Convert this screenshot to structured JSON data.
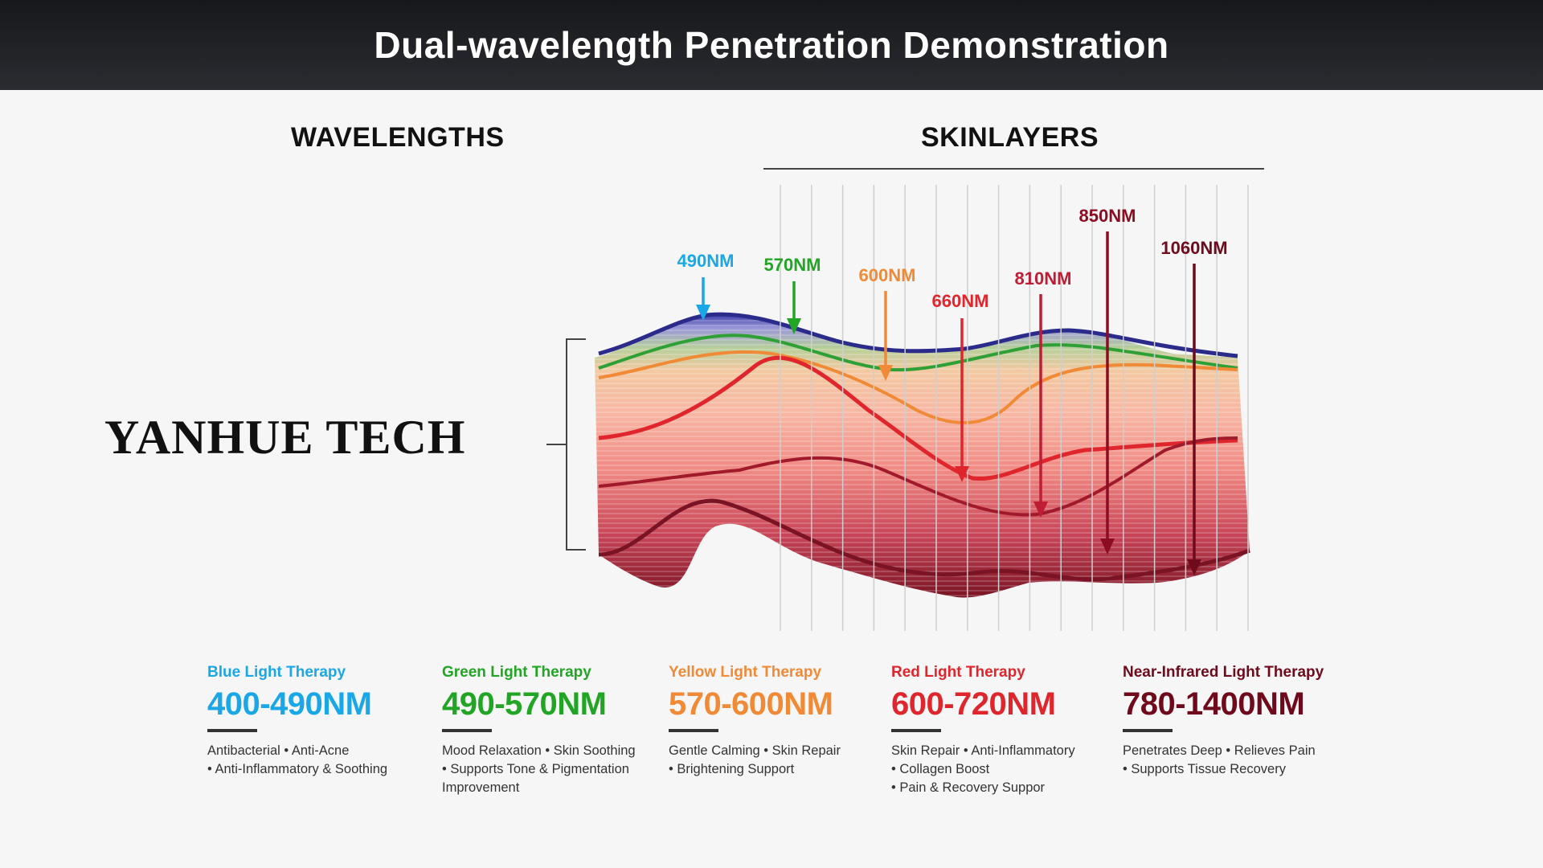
{
  "header": {
    "title": "Dual-wavelength Penetration Demonstration"
  },
  "sections": {
    "wavelengths": "WAVELENGTHS",
    "skinlayers": "SKINLAYERS"
  },
  "brand": {
    "logo": "YANHUE TECH"
  },
  "arrows": [
    {
      "label": "490NM",
      "color": "#1aa7e8"
    },
    {
      "label": "570NM",
      "color": "#22a524"
    },
    {
      "label": "600NM",
      "color": "#f08a36"
    },
    {
      "label": "660NM",
      "color": "#e0262d"
    },
    {
      "label": "810NM",
      "color": "#bf1d35"
    },
    {
      "label": "850NM",
      "color": "#8c0d22"
    },
    {
      "label": "1060NM",
      "color": "#6e0a1c"
    }
  ],
  "colors": {
    "header_bg": "#1c1d21",
    "page_bg": "#f6f6f6",
    "blue": "#1aa7e8",
    "green": "#22a524",
    "yellow": "#f08a36",
    "red": "#e0262d",
    "near_infrared": "#6e0a1c"
  },
  "therapies": [
    {
      "name": "Blue Light Therapy",
      "range": "400-490NM",
      "color": "#1aa7e8",
      "desc": [
        "Antibacterial • Anti-Acne",
        "• Anti-Inflammatory & Soothing"
      ]
    },
    {
      "name": "Green Light Therapy",
      "range": "490-570NM",
      "color": "#22a524",
      "desc": [
        "Mood Relaxation • Skin Soothing",
        "• Supports Tone & Pigmentation",
        "Improvement"
      ]
    },
    {
      "name": "Yellow Light Therapy",
      "range": "570-600NM",
      "color": "#f08a36",
      "desc": [
        "Gentle Calming • Skin Repair",
        "• Brightening Support"
      ]
    },
    {
      "name": "Red Light Therapy",
      "range": "600-720NM",
      "color": "#e0262d",
      "desc": [
        "Skin Repair • Anti-Inflammatory",
        "• Collagen Boost",
        "• Pain & Recovery Suppor"
      ]
    },
    {
      "name": "Near-Infrared Light Therapy",
      "range": "780-1400NM",
      "color": "#6e0a1c",
      "desc": [
        "Penetrates Deep • Relieves Pain",
        "• Supports Tissue Recovery"
      ]
    }
  ]
}
